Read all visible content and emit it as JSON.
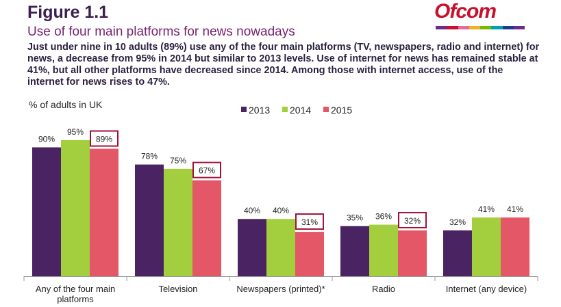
{
  "header": {
    "figure_label": "Figure 1.1",
    "subtitle": "Use of four main platforms for news nowadays",
    "description": "Just under nine in 10 adults (89%) use any of the four main platforms (TV, newspapers, radio and internet) for news, a decrease from 95% in 2014 but similar to 2013 levels. Use of internet for news has remained stable at 41%, but all other platforms have decreased since 2014. Among those with internet access, use of the internet for news rises to 47%."
  },
  "logo": {
    "text": "Ofcom",
    "strip_colors": [
      "#6a2c91",
      "#c8102e",
      "#e86aa0",
      "#f0b323",
      "#7ab800",
      "#00a3ad",
      "#1f3c88",
      "#6a2c91"
    ]
  },
  "chart_data": {
    "type": "bar",
    "ylabel": "% of adults in UK",
    "ylim": [
      0,
      100
    ],
    "grid": false,
    "legend_position": "top",
    "categories": [
      "Any of the four main platforms",
      "Television",
      "Newspapers (printed)*",
      "Radio",
      "Internet (any device)"
    ],
    "category_lines": [
      [
        "Any of the four main",
        "platforms"
      ],
      [
        "Television"
      ],
      [
        "Newspapers (printed)*"
      ],
      [
        "Radio"
      ],
      [
        "Internet (any device)"
      ]
    ],
    "series": [
      {
        "name": "2013",
        "color": "#4a2462",
        "values": [
          90,
          78,
          40,
          35,
          32
        ]
      },
      {
        "name": "2014",
        "color": "#a3cf3f",
        "values": [
          95,
          75,
          40,
          36,
          41
        ]
      },
      {
        "name": "2015",
        "color": "#e45766",
        "values": [
          89,
          67,
          31,
          32,
          41
        ]
      }
    ],
    "value_labels": [
      [
        "90%",
        "95%",
        "89%"
      ],
      [
        "78%",
        "75%",
        "67%"
      ],
      [
        "40%",
        "40%",
        "31%"
      ],
      [
        "35%",
        "36%",
        "32%"
      ],
      [
        "32%",
        "41%",
        "41%"
      ]
    ],
    "highlighted_series": "2015",
    "highlighted_categories": [
      0,
      1,
      2,
      3
    ],
    "highlight_color": "#a0123a"
  }
}
